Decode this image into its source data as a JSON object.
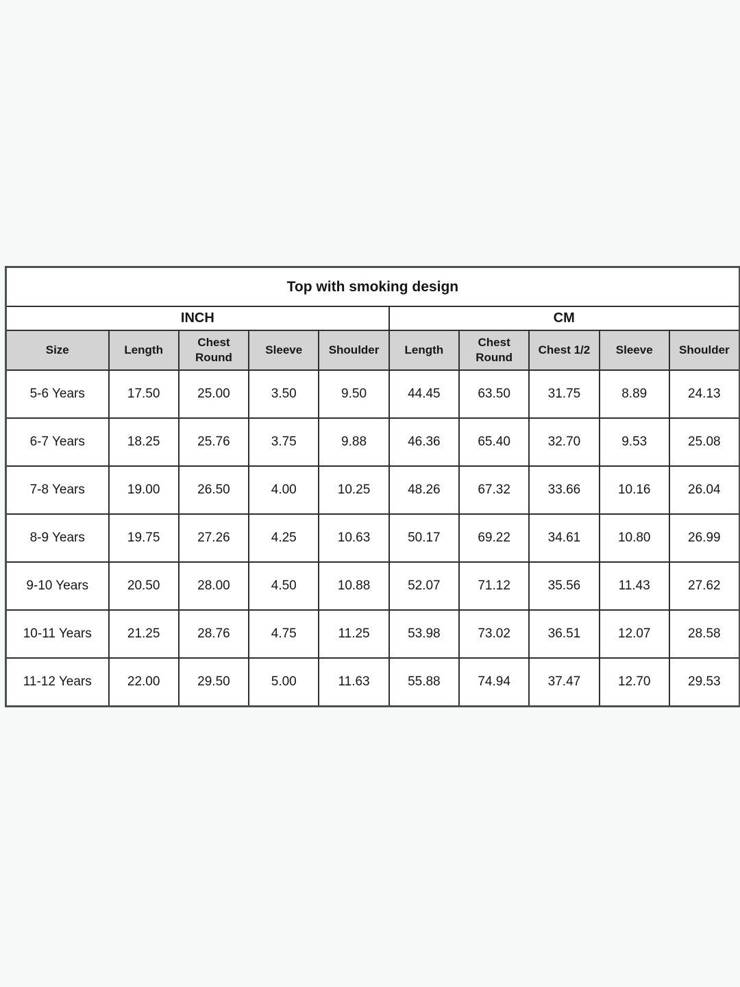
{
  "page": {
    "background": "#f7f8f8"
  },
  "table": {
    "title": "Top with smoking design",
    "unit_groups": [
      {
        "label": "INCH",
        "span": 5
      },
      {
        "label": "CM",
        "span": 5
      }
    ],
    "columns": [
      "Size",
      "Length",
      "Chest Round",
      "Sleeve",
      "Shoulder",
      "Length",
      "Chest Round",
      "Chest 1/2",
      "Sleeve",
      "Shoulder"
    ],
    "rows": [
      [
        "5-6 Years",
        "17.50",
        "25.00",
        "3.50",
        "9.50",
        "44.45",
        "63.50",
        "31.75",
        "8.89",
        "24.13"
      ],
      [
        "6-7 Years",
        "18.25",
        "25.76",
        "3.75",
        "9.88",
        "46.36",
        "65.40",
        "32.70",
        "9.53",
        "25.08"
      ],
      [
        "7-8 Years",
        "19.00",
        "26.50",
        "4.00",
        "10.25",
        "48.26",
        "67.32",
        "33.66",
        "10.16",
        "26.04"
      ],
      [
        "8-9 Years",
        "19.75",
        "27.26",
        "4.25",
        "10.63",
        "50.17",
        "69.22",
        "34.61",
        "10.80",
        "26.99"
      ],
      [
        "9-10 Years",
        "20.50",
        "28.00",
        "4.50",
        "10.88",
        "52.07",
        "71.12",
        "35.56",
        "11.43",
        "27.62"
      ],
      [
        "10-11 Years",
        "21.25",
        "28.76",
        "4.75",
        "11.25",
        "53.98",
        "73.02",
        "36.51",
        "12.07",
        "28.58"
      ],
      [
        "11-12 Years",
        "22.00",
        "29.50",
        "5.00",
        "11.63",
        "55.88",
        "74.94",
        "37.47",
        "12.70",
        "29.53"
      ]
    ],
    "colors": {
      "header_bg": "#d3d3d3",
      "cell_bg": "#ffffff",
      "inner_border": "#2f2f2f",
      "outer_border": "#4f4f4f",
      "text": "#161616"
    }
  }
}
